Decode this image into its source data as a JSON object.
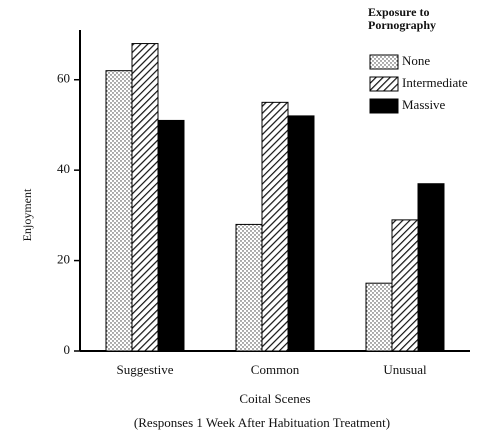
{
  "chart_data": {
    "type": "bar",
    "categories": [
      "Suggestive",
      "Common",
      "Unusual"
    ],
    "series": [
      {
        "name": "None",
        "color": "#ffffff",
        "pattern": "dots",
        "values": [
          62,
          28,
          15
        ]
      },
      {
        "name": "Intermediate",
        "color": "#ffffff",
        "pattern": "hatch",
        "values": [
          68,
          55,
          29
        ]
      },
      {
        "name": "Massive",
        "color": "#000000",
        "pattern": "solid",
        "values": [
          51,
          52,
          37
        ]
      }
    ],
    "legend_title": "Exposure to Pornography",
    "legend": "top-right",
    "x_label": "Coital Scenes",
    "caption": "(Responses 1 Week After Habituation Treatment)",
    "y_label": "Enjoyment",
    "ylim": [
      0,
      71
    ],
    "yticks": [
      0,
      20,
      40,
      60
    ]
  }
}
